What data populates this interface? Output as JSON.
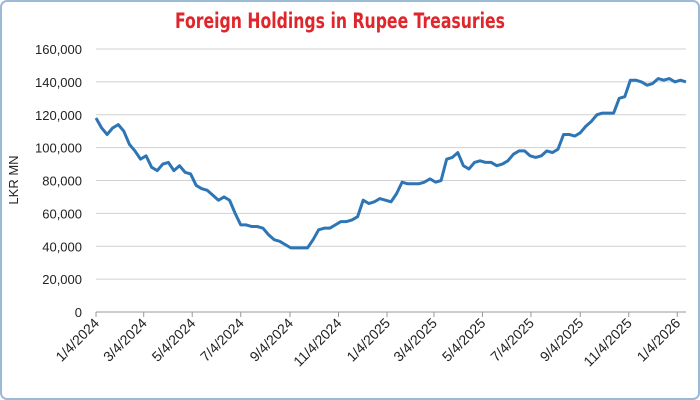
{
  "chart_data": {
    "type": "line",
    "title": "Foreign Holdings in Rupee Treasuries",
    "y_label": "LKR MN",
    "x": [
      "2024-01-04",
      "2024-01-11",
      "2024-01-18",
      "2024-01-25",
      "2024-02-01",
      "2024-02-08",
      "2024-02-15",
      "2024-02-22",
      "2024-02-29",
      "2024-03-07",
      "2024-03-14",
      "2024-03-21",
      "2024-03-28",
      "2024-04-04",
      "2024-04-11",
      "2024-04-18",
      "2024-04-25",
      "2024-05-02",
      "2024-05-09",
      "2024-05-16",
      "2024-05-23",
      "2024-05-30",
      "2024-06-06",
      "2024-06-13",
      "2024-06-20",
      "2024-06-27",
      "2024-07-04",
      "2024-07-11",
      "2024-07-18",
      "2024-07-25",
      "2024-08-01",
      "2024-08-08",
      "2024-08-15",
      "2024-08-22",
      "2024-08-29",
      "2024-09-05",
      "2024-09-12",
      "2024-09-19",
      "2024-09-26",
      "2024-10-03",
      "2024-10-10",
      "2024-10-17",
      "2024-10-24",
      "2024-10-31",
      "2024-11-07",
      "2024-11-14",
      "2024-11-21",
      "2024-11-28",
      "2024-12-05",
      "2024-12-12",
      "2024-12-19",
      "2024-12-26",
      "2025-01-02",
      "2025-01-09",
      "2025-01-16",
      "2025-01-23",
      "2025-01-30",
      "2025-02-06",
      "2025-02-13",
      "2025-02-20",
      "2025-02-27",
      "2025-03-06",
      "2025-03-13",
      "2025-03-20",
      "2025-03-27",
      "2025-04-03",
      "2025-04-10",
      "2025-04-17",
      "2025-04-24",
      "2025-05-01",
      "2025-05-08",
      "2025-05-15",
      "2025-05-22",
      "2025-05-29",
      "2025-06-05",
      "2025-06-12",
      "2025-06-19",
      "2025-06-26",
      "2025-07-03",
      "2025-07-10",
      "2025-07-17",
      "2025-07-24",
      "2025-07-31",
      "2025-08-07",
      "2025-08-14",
      "2025-08-21",
      "2025-08-28",
      "2025-09-04",
      "2025-09-11",
      "2025-09-18",
      "2025-09-25",
      "2025-10-02",
      "2025-10-09",
      "2025-10-16",
      "2025-10-23",
      "2025-10-30",
      "2025-11-06",
      "2025-11-13",
      "2025-11-20",
      "2025-11-27",
      "2025-12-04",
      "2025-12-11",
      "2025-12-18",
      "2025-12-25",
      "2026-01-01",
      "2026-01-08",
      "2026-01-15"
    ],
    "series": [
      {
        "name": "Foreign Holdings",
        "color": "#2e75b6",
        "values": [
          118000,
          112000,
          108000,
          112000,
          114000,
          110000,
          102000,
          98000,
          93000,
          95000,
          88000,
          86000,
          90000,
          91000,
          86000,
          89000,
          85000,
          84000,
          77000,
          75000,
          74000,
          71000,
          68000,
          70000,
          68000,
          60000,
          53000,
          53000,
          52000,
          52000,
          51000,
          47000,
          44000,
          43000,
          41000,
          39000,
          39000,
          39000,
          39000,
          44000,
          50000,
          51000,
          51000,
          53000,
          55000,
          55000,
          56000,
          58000,
          68000,
          66000,
          67000,
          69000,
          68000,
          67000,
          72000,
          79000,
          78000,
          78000,
          78000,
          79000,
          81000,
          79000,
          80000,
          93000,
          94000,
          97000,
          89000,
          87000,
          91000,
          92000,
          91000,
          91000,
          89000,
          90000,
          92000,
          96000,
          98000,
          98000,
          95000,
          94000,
          95000,
          98000,
          97000,
          99000,
          108000,
          108000,
          107000,
          109000,
          113000,
          116000,
          120000,
          121000,
          121000,
          121000,
          130000,
          131000,
          141000,
          141000,
          140000,
          138000,
          139000,
          142000,
          141000,
          142000,
          140000,
          141000,
          140000
        ]
      }
    ],
    "xlim": [
      "2024-01-04",
      "2026-01-15"
    ],
    "xticks": [
      {
        "value": "2024-01-04",
        "label": "1/4/2024"
      },
      {
        "value": "2024-03-04",
        "label": "3/4/2024"
      },
      {
        "value": "2024-05-04",
        "label": "5/4/2024"
      },
      {
        "value": "2024-07-04",
        "label": "7/4/2024"
      },
      {
        "value": "2024-09-04",
        "label": "9/4/2024"
      },
      {
        "value": "2024-11-04",
        "label": "11/4/2024"
      },
      {
        "value": "2025-01-04",
        "label": "1/4/2025"
      },
      {
        "value": "2025-03-04",
        "label": "3/4/2025"
      },
      {
        "value": "2025-05-04",
        "label": "5/4/2025"
      },
      {
        "value": "2025-07-04",
        "label": "7/4/2025"
      },
      {
        "value": "2025-09-04",
        "label": "9/4/2025"
      },
      {
        "value": "2025-11-04",
        "label": "11/4/2025"
      },
      {
        "value": "2026-01-04",
        "label": "1/4/2026"
      }
    ],
    "ylim": [
      0,
      160000
    ],
    "yticks": [
      0,
      {
        "value": 20000,
        "label": "20,000"
      },
      {
        "value": 40000,
        "label": "40,000"
      },
      {
        "value": 60000,
        "label": "60,000"
      },
      {
        "value": 80000,
        "label": "80,000"
      },
      {
        "value": 100000,
        "label": "100,000"
      },
      {
        "value": 120000,
        "label": "120,000"
      },
      {
        "value": 140000,
        "label": "140,000"
      },
      {
        "value": 160000,
        "label": "160,000"
      }
    ],
    "grid": true
  }
}
